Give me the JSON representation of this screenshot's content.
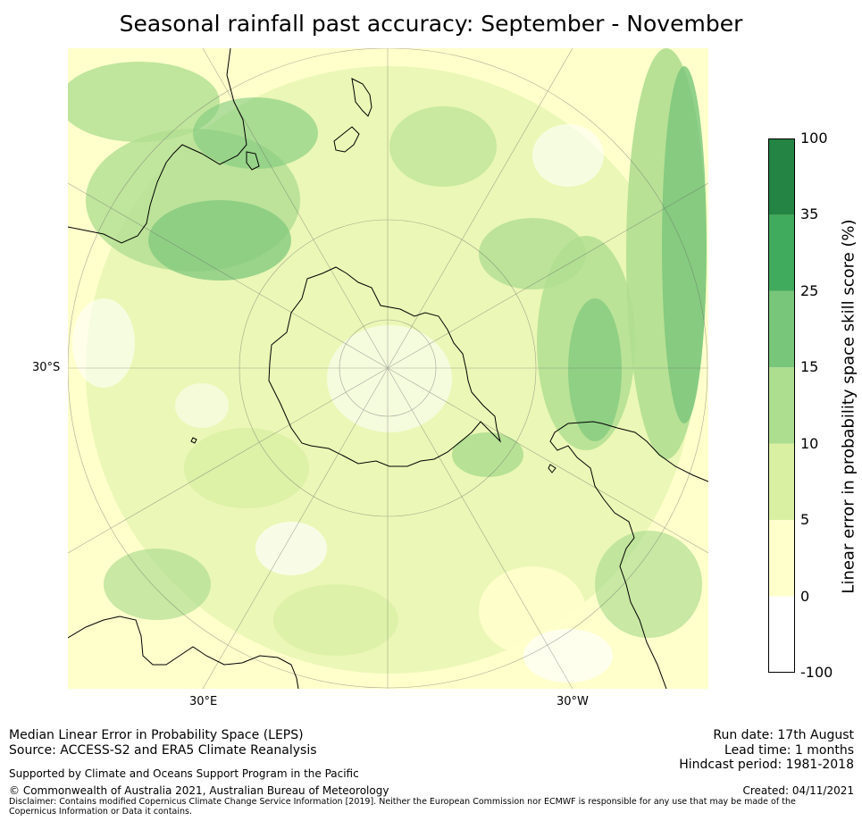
{
  "title": "Seasonal rainfall past accuracy: September - November",
  "map": {
    "lat_labels": {
      "left": "30°S"
    },
    "lon_labels": {
      "lower_left": "30°E",
      "lower_right": "30°W"
    }
  },
  "colorbar": {
    "label": "Linear error in probability space skill score (%)",
    "ticks": [
      "100",
      "35",
      "25",
      "15",
      "10",
      "5",
      "0",
      "-100"
    ],
    "bins": [
      {
        "from": -100,
        "to": 0,
        "color": "#ffffff"
      },
      {
        "from": 0,
        "to": 5,
        "color": "#ffffcc"
      },
      {
        "from": 5,
        "to": 10,
        "color": "#d9f0a3"
      },
      {
        "from": 10,
        "to": 15,
        "color": "#addd8e"
      },
      {
        "from": 15,
        "to": 25,
        "color": "#78c679"
      },
      {
        "from": 25,
        "to": 35,
        "color": "#41ab5d"
      },
      {
        "from": 35,
        "to": 100,
        "color": "#238443"
      }
    ]
  },
  "footer": {
    "line1": "Median Linear Error in Probability Space (LEPS)",
    "line2": "Source: ACCESS-S2 and ERA5 Climate Reanalysis",
    "supported": "Supported by Climate and Oceans Support Program in the Pacific",
    "copyright": "© Commonwealth of Australia 2021, Australian Bureau of Meteorology",
    "disclaimer": "Disclaimer: Contains modified Copernicus Climate Change Service Information [2019]. Neither the European Commission nor ECMWF is responsible for any use that may be made of the Copernicus Information or Data it contains.",
    "run_date": "Run date: 17th August",
    "lead_time": "Lead time: 1 months",
    "hindcast": "Hindcast period: 1981-2018",
    "created": "Created: 04/11/2021"
  }
}
